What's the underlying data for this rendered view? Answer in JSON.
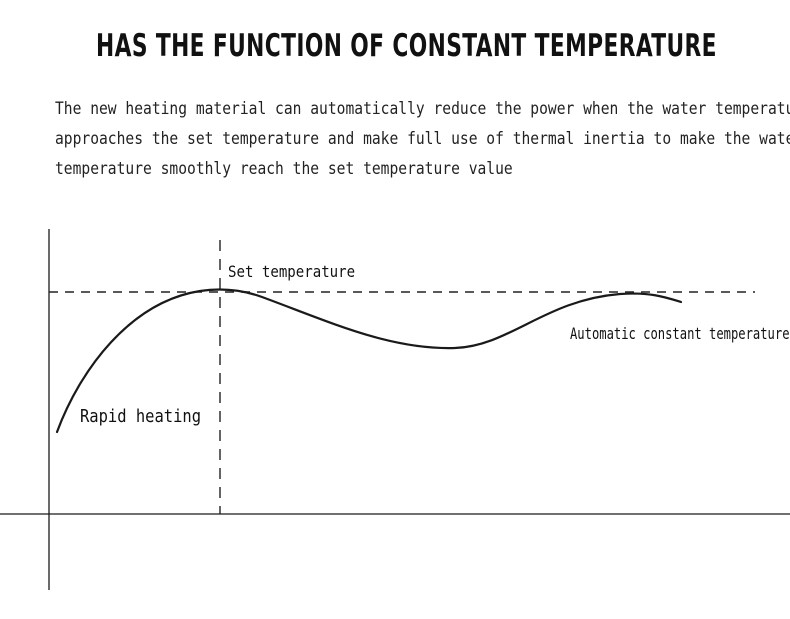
{
  "title": "HAS THE FUNCTION OF CONSTANT TEMPERATURE",
  "description_lines": [
    "The new heating material can automatically reduce the power when the water temperature",
    "approaches the set temperature and make full use of thermal inertia to make the water",
    "temperature smoothly reach the set temperature value"
  ],
  "diagram": {
    "labels": {
      "set_temperature": "Set temperature",
      "automatic_constant": "Automatic constant temperature",
      "rapid_heating": "Rapid heating"
    },
    "colors": {
      "line": "#1a1a1a",
      "dashed": "#222222"
    }
  }
}
